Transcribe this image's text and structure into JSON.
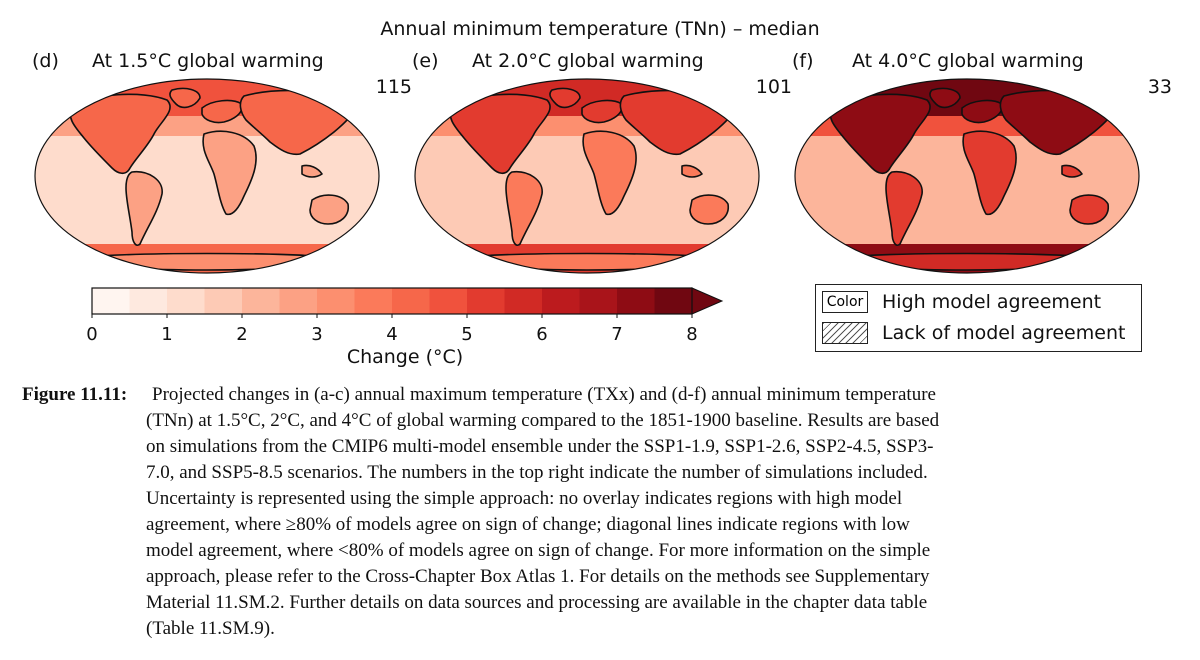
{
  "figure_title": "Annual minimum temperature (TNn) – median",
  "panels": [
    {
      "label": "(d)",
      "title": "At 1.5°C global warming",
      "count": "115",
      "intensity": 0.35
    },
    {
      "label": "(e)",
      "title": "At 2.0°C global warming",
      "count": "101",
      "intensity": 0.55
    },
    {
      "label": "(f)",
      "title": "At 4.0°C global warming",
      "count": "33",
      "intensity": 1.0
    }
  ],
  "colorbar": {
    "ticks": [
      "0",
      "1",
      "2",
      "3",
      "4",
      "5",
      "6",
      "7",
      "8"
    ],
    "range": [
      0,
      8
    ],
    "step": 0.5,
    "label": "Change (°C)",
    "colors": [
      "#fff5f0",
      "#fee9df",
      "#fedccc",
      "#fdcab5",
      "#fcb59b",
      "#fca184",
      "#fc8f6f",
      "#fb7a5a",
      "#f6674a",
      "#f0523d",
      "#e23b2f",
      "#d12a25",
      "#bc1b1e",
      "#a9141a",
      "#8e0c14",
      "#700711"
    ]
  },
  "legend": {
    "color_swatch": "Color",
    "high_agreement": "High model agreement",
    "lack_agreement": "Lack of model agreement"
  },
  "caption": {
    "label": "Figure 11.11:",
    "lines": [
      "Projected changes in (a-c) annual maximum temperature (TXx) and (d-f) annual minimum temperature",
      "(TNn) at 1.5°C, 2°C, and 4°C of global warming compared to the 1851-1900 baseline. Results are based",
      "on simulations from the CMIP6 multi-model ensemble under the SSP1-1.9, SSP1-2.6, SSP2-4.5, SSP3-",
      "7.0, and SSP5-8.5 scenarios. The numbers in the top right indicate the number of simulations included.",
      "Uncertainty is represented using the simple approach: no overlay indicates regions with high model",
      "agreement, where ≥80% of models agree on sign of change; diagonal lines indicate regions with low",
      "model agreement, where <80% of models agree on sign of change. For more information on the simple",
      "approach, please refer to the Cross-Chapter Box Atlas 1. For details on the methods see Supplementary",
      "Material 11.SM.2. Further details on data sources and processing are available in the chapter data table",
      "(Table 11.SM.9)."
    ]
  }
}
